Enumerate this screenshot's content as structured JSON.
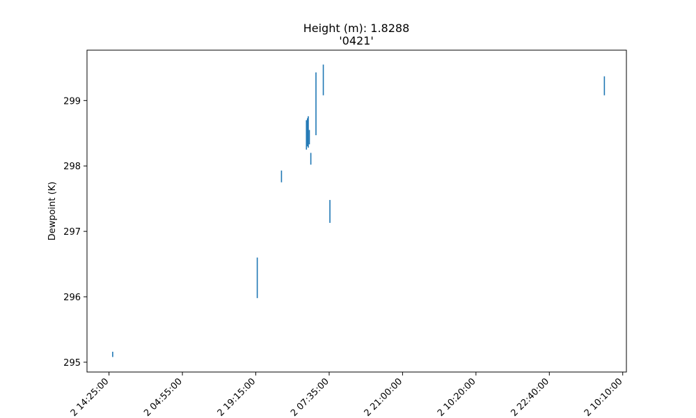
{
  "chart_data": {
    "type": "line",
    "title": "Height (m): 1.8288",
    "subtitle": "'0421'",
    "xlabel": "",
    "ylabel": "Dewpoint (K)",
    "x_range": [
      -0.3,
      7.05
    ],
    "ylim": [
      294.85,
      299.77
    ],
    "x_ticks": [
      {
        "value": 0,
        "label": "2 14:25:00"
      },
      {
        "value": 1,
        "label": "2 04:55:00"
      },
      {
        "value": 2,
        "label": "2 19:15:00"
      },
      {
        "value": 3,
        "label": "2 07:35:00"
      },
      {
        "value": 4,
        "label": "2 21:00:00"
      },
      {
        "value": 5,
        "label": "2 10:20:00"
      },
      {
        "value": 6,
        "label": "2 22:40:00"
      },
      {
        "value": 7,
        "label": "2 10:10:00"
      }
    ],
    "y_ticks": [
      295,
      296,
      297,
      298,
      299
    ],
    "grid": false,
    "series": [
      {
        "color": "#1f77b4",
        "segments": [
          {
            "x": 0.05,
            "y": [
              295.08,
              295.16
            ]
          },
          {
            "x": 2.02,
            "y": [
              295.98,
              296.6
            ]
          },
          {
            "x": 2.35,
            "y": [
              297.75,
              297.93
            ]
          },
          {
            "x": 2.69,
            "y": [
              298.25,
              298.7
            ]
          },
          {
            "x": 2.705,
            "y": [
              298.3,
              298.73
            ]
          },
          {
            "x": 2.715,
            "y": [
              298.28,
              298.76
            ]
          },
          {
            "x": 2.73,
            "y": [
              298.33,
              298.55
            ]
          },
          {
            "x": 2.75,
            "y": [
              298.02,
              298.2
            ]
          },
          {
            "x": 2.82,
            "y": [
              298.47,
              299.43
            ]
          },
          {
            "x": 2.92,
            "y": [
              299.08,
              299.55
            ]
          },
          {
            "x": 3.01,
            "y": [
              297.13,
              297.48
            ]
          },
          {
            "x": 6.75,
            "y": [
              299.08,
              299.37
            ]
          }
        ]
      }
    ]
  }
}
